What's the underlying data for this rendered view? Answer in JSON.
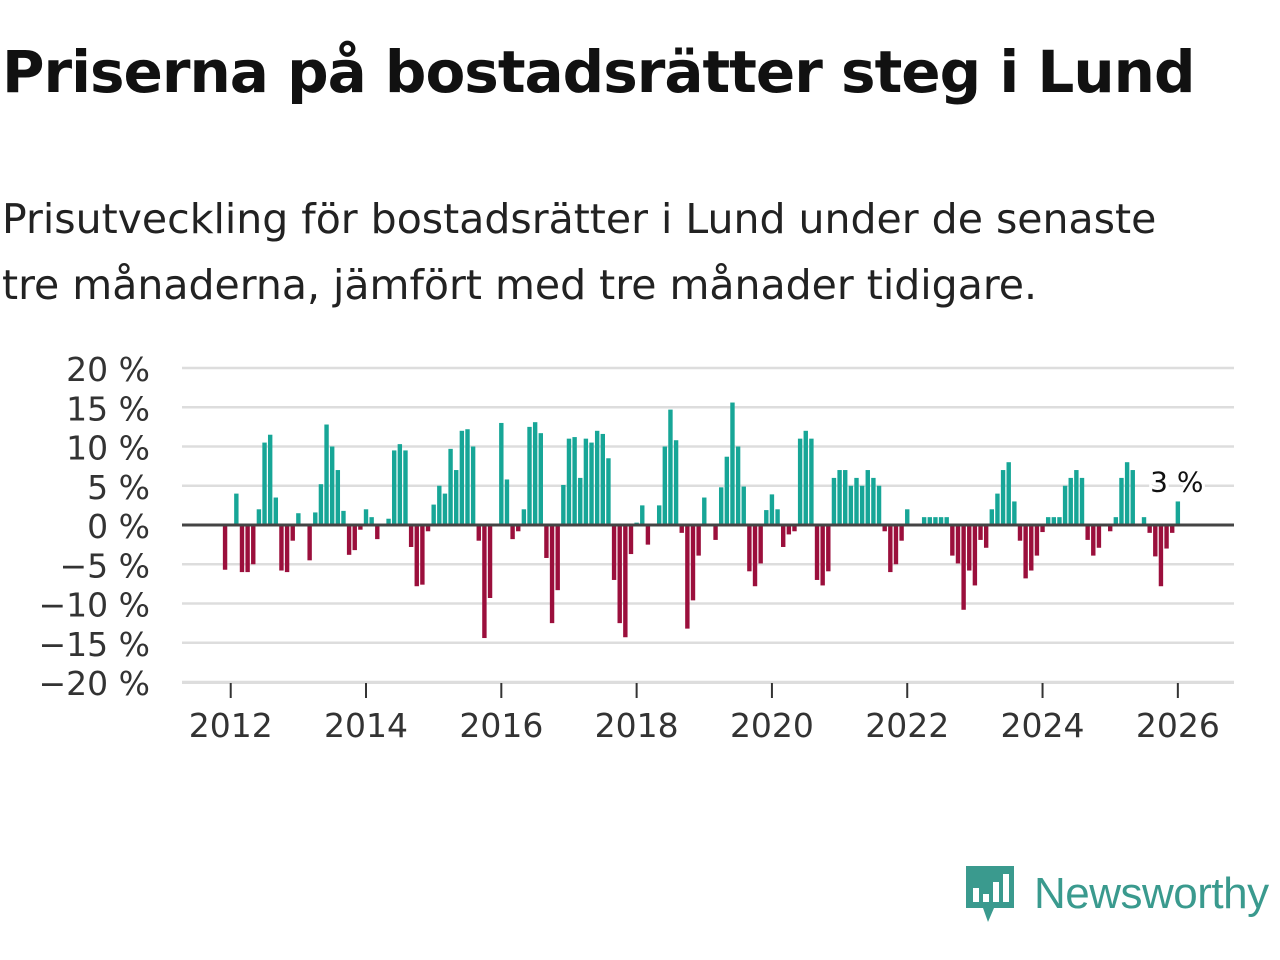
{
  "title": "Priserna på bostadsrätter steg i Lund",
  "subtitle_line1": "Prisutveckling för bostadsrätter i Lund under de senaste",
  "subtitle_line2": "tre månaderna, jämfört med tre månader tidigare.",
  "brand": "Newsworthy",
  "colors": {
    "positive": "#17a697",
    "negative": "#9b0f3c",
    "grid": "#dddddd",
    "axis": "#444444"
  },
  "chart_data": {
    "type": "bar",
    "title": "Priserna på bostadsrätter steg i Lund",
    "xlabel": "",
    "ylabel": "",
    "ylim": [
      -20,
      20
    ],
    "y_ticks": [
      20,
      15,
      10,
      5,
      0,
      -5,
      -10,
      -15,
      -20
    ],
    "y_tick_labels": [
      "20 %",
      "15 %",
      "10 %",
      "5 %",
      "0 %",
      "−5 %",
      "−10 %",
      "−15 %",
      "−20 %"
    ],
    "x_ticks": [
      2012,
      2014,
      2016,
      2018,
      2020,
      2022,
      2024,
      2026
    ],
    "x_range": [
      2011.28,
      2026.83
    ],
    "start": {
      "year": 2011,
      "month": 12
    },
    "annotation": "3 %",
    "values": [
      -5.7,
      0,
      4,
      -6,
      -6,
      -5,
      2,
      10.5,
      11.5,
      3.5,
      -5.8,
      -6,
      -2,
      1.5,
      0,
      -4.5,
      1.6,
      5.2,
      12.8,
      10,
      7,
      1.8,
      -3.8,
      -3.2,
      -0.6,
      2,
      1,
      -1.8,
      0,
      0.8,
      9.5,
      10.3,
      9.5,
      -2.8,
      -7.8,
      -7.6,
      -0.8,
      2.6,
      5,
      4,
      9.7,
      7,
      12,
      12.2,
      10,
      -2,
      -14.4,
      -9.3,
      0,
      13,
      5.8,
      -1.8,
      -0.8,
      2,
      12.5,
      13.1,
      11.7,
      -4.2,
      -12.5,
      -8.3,
      5.1,
      11,
      11.2,
      6,
      11,
      10.5,
      12,
      11.6,
      8.5,
      -7,
      -12.5,
      -14.3,
      -3.7,
      0.3,
      2.5,
      -2.5,
      0,
      2.5,
      10,
      14.7,
      10.8,
      -1,
      -13.2,
      -9.6,
      -3.9,
      3.5,
      0,
      -1.9,
      4.8,
      8.7,
      15.6,
      10,
      4.9,
      -5.9,
      -7.8,
      -4.9,
      1.9,
      3.9,
      2,
      -2.8,
      -1.2,
      -0.8,
      11,
      12,
      11,
      -7,
      -7.7,
      -5.9,
      6,
      7,
      7,
      5,
      6,
      5,
      7,
      6,
      5,
      -0.8,
      -6,
      -5,
      -2,
      2,
      0,
      0,
      1,
      1,
      1,
      1,
      1,
      -3.9,
      -4.9,
      -10.8,
      -5.8,
      -7.7,
      -1.9,
      -2.9,
      2,
      4,
      7,
      8,
      3,
      -2,
      -6.8,
      -5.8,
      -3.9,
      -0.9,
      1,
      1,
      1,
      5,
      6,
      7,
      6,
      -1.9,
      -3.9,
      -2.9,
      0,
      -0.8,
      1,
      6,
      8,
      7,
      0,
      1,
      -1,
      -4,
      -7.8,
      -3,
      -1,
      3
    ]
  }
}
